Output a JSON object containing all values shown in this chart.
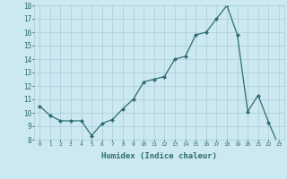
{
  "x": [
    0,
    1,
    2,
    3,
    4,
    5,
    6,
    7,
    8,
    9,
    10,
    11,
    12,
    13,
    14,
    15,
    16,
    17,
    18,
    19,
    20,
    21,
    22,
    23
  ],
  "y": [
    10.5,
    9.8,
    9.4,
    9.4,
    9.4,
    8.3,
    9.2,
    9.5,
    10.3,
    11.0,
    12.3,
    12.5,
    12.7,
    14.0,
    14.2,
    15.8,
    16.0,
    17.0,
    18.0,
    15.8,
    10.1,
    11.3,
    9.3,
    7.5
  ],
  "xlim": [
    -0.5,
    23.5
  ],
  "ylim": [
    8,
    18
  ],
  "yticks": [
    8,
    9,
    10,
    11,
    12,
    13,
    14,
    15,
    16,
    17,
    18
  ],
  "xticks": [
    0,
    1,
    2,
    3,
    4,
    5,
    6,
    7,
    8,
    9,
    10,
    11,
    12,
    13,
    14,
    15,
    16,
    17,
    18,
    19,
    20,
    21,
    22,
    23
  ],
  "xlabel": "Humidex (Indice chaleur)",
  "line_color": "#2d6e6e",
  "marker": "D",
  "marker_size": 2,
  "bg_color": "#cce8f0",
  "grid_color": "#aaccd8",
  "label_color": "#2d6e6e",
  "tick_color": "#2d6e6e"
}
